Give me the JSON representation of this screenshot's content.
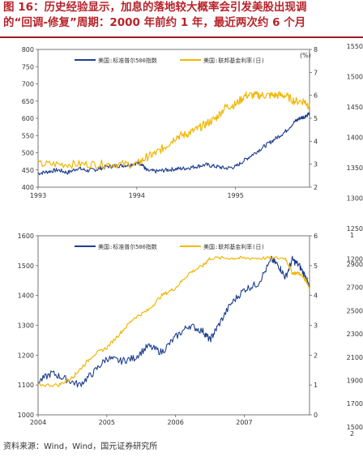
{
  "title_line1": "图 16：历史经验显示，加息的落地较大概率会引发美股出现调",
  "title_line2": "的“回调-修复”周期：2000 年前约 1 年，最近两次约 6 个月",
  "source": "资料来源：Wind，Wind，国元证券研究所",
  "colors": {
    "sp500": "#1f3f8f",
    "fedrate": "#f2b705"
  },
  "chart_data": [
    {
      "type": "line",
      "title": "",
      "x_ticks": [
        "1993",
        "1994",
        "1995"
      ],
      "y_left_ticks": [
        400,
        450,
        500,
        550,
        600,
        650,
        700,
        750,
        800
      ],
      "ylim_left": [
        400,
        800
      ],
      "y_right_ticks": [
        2,
        3,
        4,
        5,
        6,
        7,
        8
      ],
      "ylim_right": [
        2,
        8
      ],
      "right_unit": "(%)",
      "xlim": [
        1993.0,
        1995.75
      ],
      "legend": "top",
      "series": [
        {
          "name": "美国:标准普尔500指数",
          "axis": "left",
          "x": [
            1993.0,
            1993.1,
            1993.2,
            1993.3,
            1993.4,
            1993.5,
            1993.6,
            1993.7,
            1993.8,
            1993.9,
            1994.0,
            1994.05,
            1994.1,
            1994.2,
            1994.3,
            1994.4,
            1994.5,
            1994.6,
            1994.7,
            1994.8,
            1994.9,
            1995.0,
            1995.1,
            1995.2,
            1995.3,
            1995.4,
            1995.5,
            1995.6,
            1995.65,
            1995.7,
            1995.75
          ],
          "values": [
            440,
            445,
            450,
            442,
            455,
            448,
            452,
            460,
            462,
            464,
            470,
            468,
            448,
            446,
            450,
            453,
            455,
            460,
            465,
            460,
            455,
            459,
            480,
            500,
            520,
            540,
            560,
            590,
            600,
            605,
            615
          ]
        },
        {
          "name": "美国:联邦基金利率(日)",
          "axis": "right",
          "x": [
            1993.0,
            1993.2,
            1993.4,
            1993.6,
            1993.8,
            1994.0,
            1994.1,
            1994.2,
            1994.3,
            1994.4,
            1994.5,
            1994.6,
            1994.7,
            1994.8,
            1994.9,
            1995.0,
            1995.1,
            1995.2,
            1995.3,
            1995.4,
            1995.5,
            1995.6,
            1995.7,
            1995.75
          ],
          "values": [
            3.0,
            3.0,
            3.0,
            3.0,
            3.0,
            3.0,
            3.3,
            3.5,
            3.8,
            4.2,
            4.3,
            4.5,
            4.75,
            5.0,
            5.5,
            5.6,
            6.0,
            6.0,
            6.0,
            6.0,
            6.0,
            5.75,
            5.75,
            5.5
          ]
        }
      ]
    },
    {
      "type": "line",
      "title": "",
      "x_ticks": [
        "2004",
        "2005",
        "2006",
        "2007"
      ],
      "y_left_ticks": [
        1000,
        1100,
        1200,
        1300,
        1400,
        1500,
        1600
      ],
      "ylim_left": [
        1000,
        1600
      ],
      "y_right_ticks": [
        0,
        1,
        2,
        3,
        4,
        5,
        6
      ],
      "ylim_right": [
        0,
        6
      ],
      "xlim": [
        2004.0,
        2007.95
      ],
      "legend": "top",
      "series": [
        {
          "name": "美国:标准普尔500指数",
          "axis": "left",
          "x": [
            2004.0,
            2004.2,
            2004.4,
            2004.6,
            2004.8,
            2005.0,
            2005.2,
            2005.4,
            2005.6,
            2005.8,
            2006.0,
            2006.2,
            2006.4,
            2006.5,
            2006.6,
            2006.8,
            2007.0,
            2007.2,
            2007.4,
            2007.5,
            2007.6,
            2007.7,
            2007.8,
            2007.9,
            2007.95
          ],
          "values": [
            1110,
            1140,
            1120,
            1100,
            1140,
            1190,
            1180,
            1190,
            1230,
            1210,
            1260,
            1300,
            1280,
            1250,
            1290,
            1370,
            1420,
            1440,
            1520,
            1500,
            1460,
            1520,
            1500,
            1460,
            1420
          ]
        },
        {
          "name": "美国:联邦基金利率(日)",
          "axis": "right",
          "x": [
            2004.0,
            2004.3,
            2004.5,
            2004.6,
            2004.8,
            2005.0,
            2005.2,
            2005.4,
            2005.6,
            2005.8,
            2006.0,
            2006.2,
            2006.4,
            2006.5,
            2006.8,
            2007.0,
            2007.3,
            2007.6,
            2007.7,
            2007.8,
            2007.9,
            2007.95
          ],
          "values": [
            1.0,
            1.0,
            1.25,
            1.5,
            2.0,
            2.25,
            2.75,
            3.25,
            3.5,
            4.0,
            4.25,
            4.75,
            5.0,
            5.25,
            5.25,
            5.25,
            5.25,
            5.25,
            4.75,
            4.75,
            4.5,
            4.25
          ]
        }
      ]
    }
  ],
  "partial_axis": {
    "ticks_a": [
      "1550",
      "1500",
      "1450",
      "1400",
      "1350",
      "1300",
      "1250",
      "1200"
    ],
    "tick_b_top": "1",
    "ticks_b": [
      "2900",
      "2700",
      "2500",
      "2300",
      "2100",
      "1900",
      "1700",
      "1500"
    ],
    "tick_b_bottom": "2"
  }
}
